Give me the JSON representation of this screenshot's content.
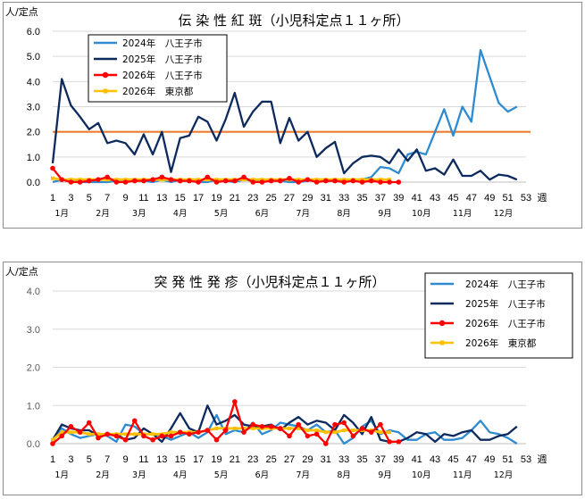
{
  "chart_data": [
    {
      "type": "line",
      "title": "伝 染 性 紅 斑（小児科定点１１ヶ所）",
      "ylabel": "人/定点",
      "xunit": "週",
      "ylim": [
        0,
        6
      ],
      "yticks": [
        "0.0",
        "1.0",
        "2.0",
        "3.0",
        "4.0",
        "5.0",
        "6.0"
      ],
      "y_tick_values": [
        0,
        1,
        2,
        3,
        4,
        5,
        6
      ],
      "ytick_grey": false,
      "xlim": [
        1,
        53
      ],
      "xticks": [
        1,
        3,
        5,
        7,
        9,
        11,
        13,
        15,
        17,
        19,
        21,
        23,
        25,
        27,
        29,
        31,
        33,
        35,
        37,
        39,
        41,
        43,
        45,
        47,
        49,
        51,
        53
      ],
      "months": [
        {
          "label": "1月",
          "x": 2
        },
        {
          "label": "2月",
          "x": 6.5
        },
        {
          "label": "3月",
          "x": 10.5
        },
        {
          "label": "4月",
          "x": 15
        },
        {
          "label": "5月",
          "x": 19.5
        },
        {
          "label": "6月",
          "x": 24
        },
        {
          "label": "7月",
          "x": 28.5
        },
        {
          "label": "8月",
          "x": 33
        },
        {
          "label": "9月",
          "x": 37.5
        },
        {
          "label": "10月",
          "x": 41.5
        },
        {
          "label": "11月",
          "x": 46
        },
        {
          "label": "12月",
          "x": 50.5
        }
      ],
      "grid": true,
      "legend_position": "top-left",
      "reference_line": {
        "value": 2.0,
        "color": "#ed7d31"
      },
      "series": [
        {
          "name": "2024年　八王子市",
          "color": "#2e8bd0",
          "marker": "none",
          "values": [
            0.0,
            0.1,
            0.05,
            0.0,
            0.0,
            0.0,
            0.0,
            0.05,
            0.0,
            0.1,
            0.05,
            0.0,
            0.1,
            0.0,
            0.1,
            0.05,
            0.0,
            0.0,
            0.1,
            0.05,
            0.0,
            0.1,
            0.05,
            0.05,
            0.1,
            0.05,
            0.0,
            0.0,
            0.05,
            0.1,
            0.05,
            0.05,
            0.1,
            0.1,
            0.1,
            0.2,
            0.6,
            0.55,
            0.35,
            1.1,
            1.2,
            1.1,
            2.0,
            2.9,
            1.85,
            3.0,
            2.4,
            5.25,
            4.2,
            3.15,
            2.8,
            3.0
          ]
        },
        {
          "name": "2025年　八王子市",
          "color": "#0d2a5e",
          "marker": "none",
          "values": [
            0.75,
            4.1,
            3.05,
            2.6,
            2.1,
            2.35,
            1.55,
            1.65,
            1.55,
            1.1,
            1.9,
            1.1,
            2.0,
            0.4,
            1.75,
            1.85,
            2.6,
            2.4,
            1.65,
            2.5,
            3.55,
            2.2,
            2.8,
            3.2,
            3.2,
            1.55,
            2.55,
            1.65,
            2.0,
            1.0,
            1.35,
            1.6,
            0.35,
            0.75,
            1.0,
            1.05,
            1.0,
            0.75,
            1.3,
            0.85,
            1.3,
            0.45,
            0.55,
            0.3,
            0.9,
            0.25,
            0.25,
            0.45,
            0.1,
            0.3,
            0.25,
            0.1
          ]
        },
        {
          "name": "2026年　八王子市",
          "color": "#ff0000",
          "marker": "circle",
          "values": [
            0.55,
            0.1,
            0.0,
            0.0,
            0.05,
            0.1,
            0.2,
            0.0,
            0.0,
            0.05,
            0.05,
            0.1,
            0.2,
            0.1,
            0.05,
            0.05,
            0.0,
            0.2,
            0.0,
            0.05,
            0.05,
            0.2,
            0.0,
            0.0,
            0.05,
            0.05,
            0.15,
            0.0,
            0.1,
            0.0,
            0.05,
            0.05,
            0.0,
            0.05,
            0.0,
            0.05,
            0.0,
            0.0,
            0.0
          ]
        },
        {
          "name": "2026年　東京都",
          "color": "#ffc000",
          "marker": "square",
          "values": [
            0.15,
            0.1,
            0.1,
            0.1,
            0.1,
            0.1,
            0.1,
            0.1,
            0.1,
            0.1,
            0.1,
            0.1,
            0.1,
            0.1,
            0.1,
            0.1,
            0.1,
            0.1,
            0.1,
            0.1,
            0.1,
            0.1,
            0.1,
            0.1,
            0.1,
            0.1,
            0.1,
            0.1,
            0.1,
            0.1,
            0.1,
            0.1,
            0.1,
            0.1,
            0.1,
            0.1,
            0.1,
            0.1
          ]
        }
      ]
    },
    {
      "type": "line",
      "title": "突 発 性 発 疹（小児科定点１１ヶ所）",
      "ylabel": "人/定点",
      "xunit": "週",
      "ylim": [
        0,
        4
      ],
      "yticks": [
        "0.0",
        "1.0",
        "2.0",
        "3.0",
        "4.0"
      ],
      "y_tick_values": [
        0,
        1,
        2,
        3,
        4
      ],
      "ytick_grey": true,
      "xlim": [
        1,
        53
      ],
      "xticks": [
        1,
        3,
        5,
        7,
        9,
        11,
        13,
        15,
        17,
        19,
        21,
        23,
        25,
        27,
        29,
        31,
        33,
        35,
        37,
        39,
        41,
        43,
        45,
        47,
        49,
        51,
        53
      ],
      "months": [
        {
          "label": "1月",
          "x": 2
        },
        {
          "label": "2月",
          "x": 6.5
        },
        {
          "label": "3月",
          "x": 10.5
        },
        {
          "label": "4月",
          "x": 15
        },
        {
          "label": "5月",
          "x": 19.5
        },
        {
          "label": "6月",
          "x": 24
        },
        {
          "label": "7月",
          "x": 28.5
        },
        {
          "label": "8月",
          "x": 33
        },
        {
          "label": "9月",
          "x": 37.5
        },
        {
          "label": "10月",
          "x": 41.5
        },
        {
          "label": "11月",
          "x": 46
        },
        {
          "label": "12月",
          "x": 50.5
        }
      ],
      "grid": true,
      "legend_position": "top-right",
      "series": [
        {
          "name": "2024年　八王子市",
          "color": "#2e8bd0",
          "marker": "none",
          "values": [
            0.05,
            0.4,
            0.25,
            0.15,
            0.2,
            0.25,
            0.2,
            0.05,
            0.5,
            0.45,
            0.25,
            0.25,
            0.2,
            0.1,
            0.2,
            0.3,
            0.15,
            0.3,
            0.75,
            0.25,
            0.35,
            0.3,
            0.55,
            0.25,
            0.35,
            0.55,
            0.5,
            0.45,
            0.35,
            0.5,
            0.3,
            0.35,
            0.0,
            0.15,
            0.45,
            0.6,
            0.25,
            0.35,
            0.3,
            0.1,
            0.1,
            0.25,
            0.3,
            0.1,
            0.1,
            0.15,
            0.35,
            0.6,
            0.3,
            0.25,
            0.15,
            0.0
          ]
        },
        {
          "name": "2025年　八王子市",
          "color": "#0d2a5e",
          "marker": "none",
          "values": [
            0.1,
            0.5,
            0.4,
            0.35,
            0.35,
            0.2,
            0.25,
            0.25,
            0.1,
            0.15,
            0.4,
            0.25,
            0.05,
            0.4,
            0.8,
            0.4,
            0.3,
            1.0,
            0.5,
            0.6,
            0.75,
            0.5,
            0.45,
            0.45,
            0.5,
            0.35,
            0.55,
            0.7,
            0.5,
            0.6,
            0.55,
            0.35,
            0.75,
            0.55,
            0.25,
            0.7,
            0.1,
            0.05,
            0.05,
            0.15,
            0.3,
            0.25,
            0.05,
            0.25,
            0.2,
            0.3,
            0.35,
            0.1,
            0.1,
            0.2,
            0.25,
            0.45
          ]
        },
        {
          "name": "2026年　八王子市",
          "color": "#ff0000",
          "marker": "circle",
          "values": [
            0.0,
            0.2,
            0.45,
            0.3,
            0.55,
            0.15,
            0.25,
            0.2,
            0.1,
            0.6,
            0.2,
            0.1,
            0.2,
            0.2,
            0.3,
            0.25,
            0.3,
            0.35,
            0.1,
            0.35,
            1.1,
            0.3,
            0.5,
            0.45,
            0.45,
            0.4,
            0.2,
            0.5,
            0.2,
            0.25,
            0.0,
            0.5,
            0.55,
            0.2,
            0.4,
            0.3,
            0.5,
            0.05,
            0.05
          ]
        },
        {
          "name": "2026年　東京都",
          "color": "#ffc000",
          "marker": "square",
          "values": [
            0.1,
            0.3,
            0.3,
            0.3,
            0.25,
            0.25,
            0.25,
            0.25,
            0.25,
            0.25,
            0.25,
            0.25,
            0.25,
            0.3,
            0.3,
            0.3,
            0.3,
            0.35,
            0.4,
            0.4,
            0.4,
            0.4,
            0.4,
            0.4,
            0.4,
            0.4,
            0.4,
            0.4,
            0.35,
            0.35,
            0.3,
            0.3,
            0.35,
            0.35,
            0.35,
            0.35,
            0.3,
            0.3
          ]
        }
      ]
    }
  ]
}
